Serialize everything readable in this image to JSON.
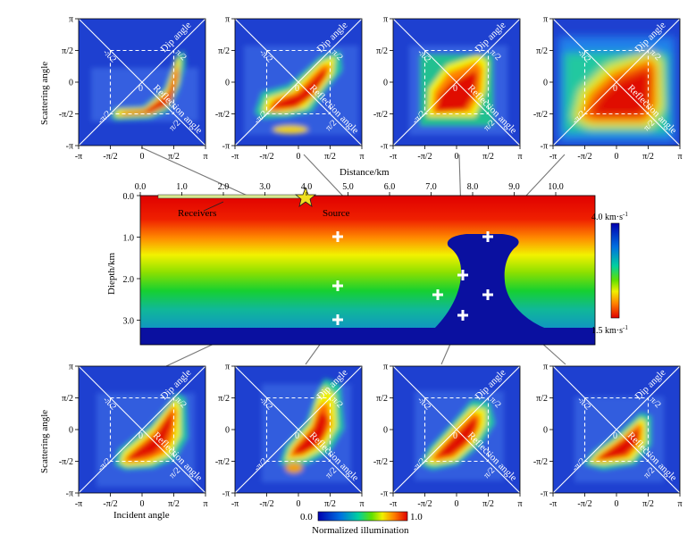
{
  "figure": {
    "panel_tick_labels": [
      "-π",
      "-π/2",
      "0",
      "π/2",
      "π"
    ],
    "inner_tick_labels": {
      "left": "-π/2",
      "right": "π/2",
      "center": "0"
    },
    "diag_labels": {
      "dip": "Dip angle",
      "refl": "Reflection angle"
    },
    "y_axis_label": "Scattering angle",
    "x_axis_label": "Incident angle",
    "model": {
      "distance_label": "Distance/km",
      "depth_label": "Diepth/km",
      "distance_ticks": [
        "0.0",
        "1.0",
        "2.0",
        "3.0",
        "4.0",
        "5.0",
        "6.0",
        "7.0",
        "8.0",
        "9.0",
        "10.0"
      ],
      "depth_ticks": [
        "0.0",
        "1.0",
        "2.0",
        "3.0"
      ],
      "receivers_label": "Receivers",
      "source_label": "Source",
      "velocity_max": "4.0 km·s",
      "velocity_min": "1.5 km·s",
      "velocity_exp": "-1"
    },
    "illumination_bar": {
      "min": "0.0",
      "max": "1.0",
      "label": "Normalized illumination"
    }
  }
}
